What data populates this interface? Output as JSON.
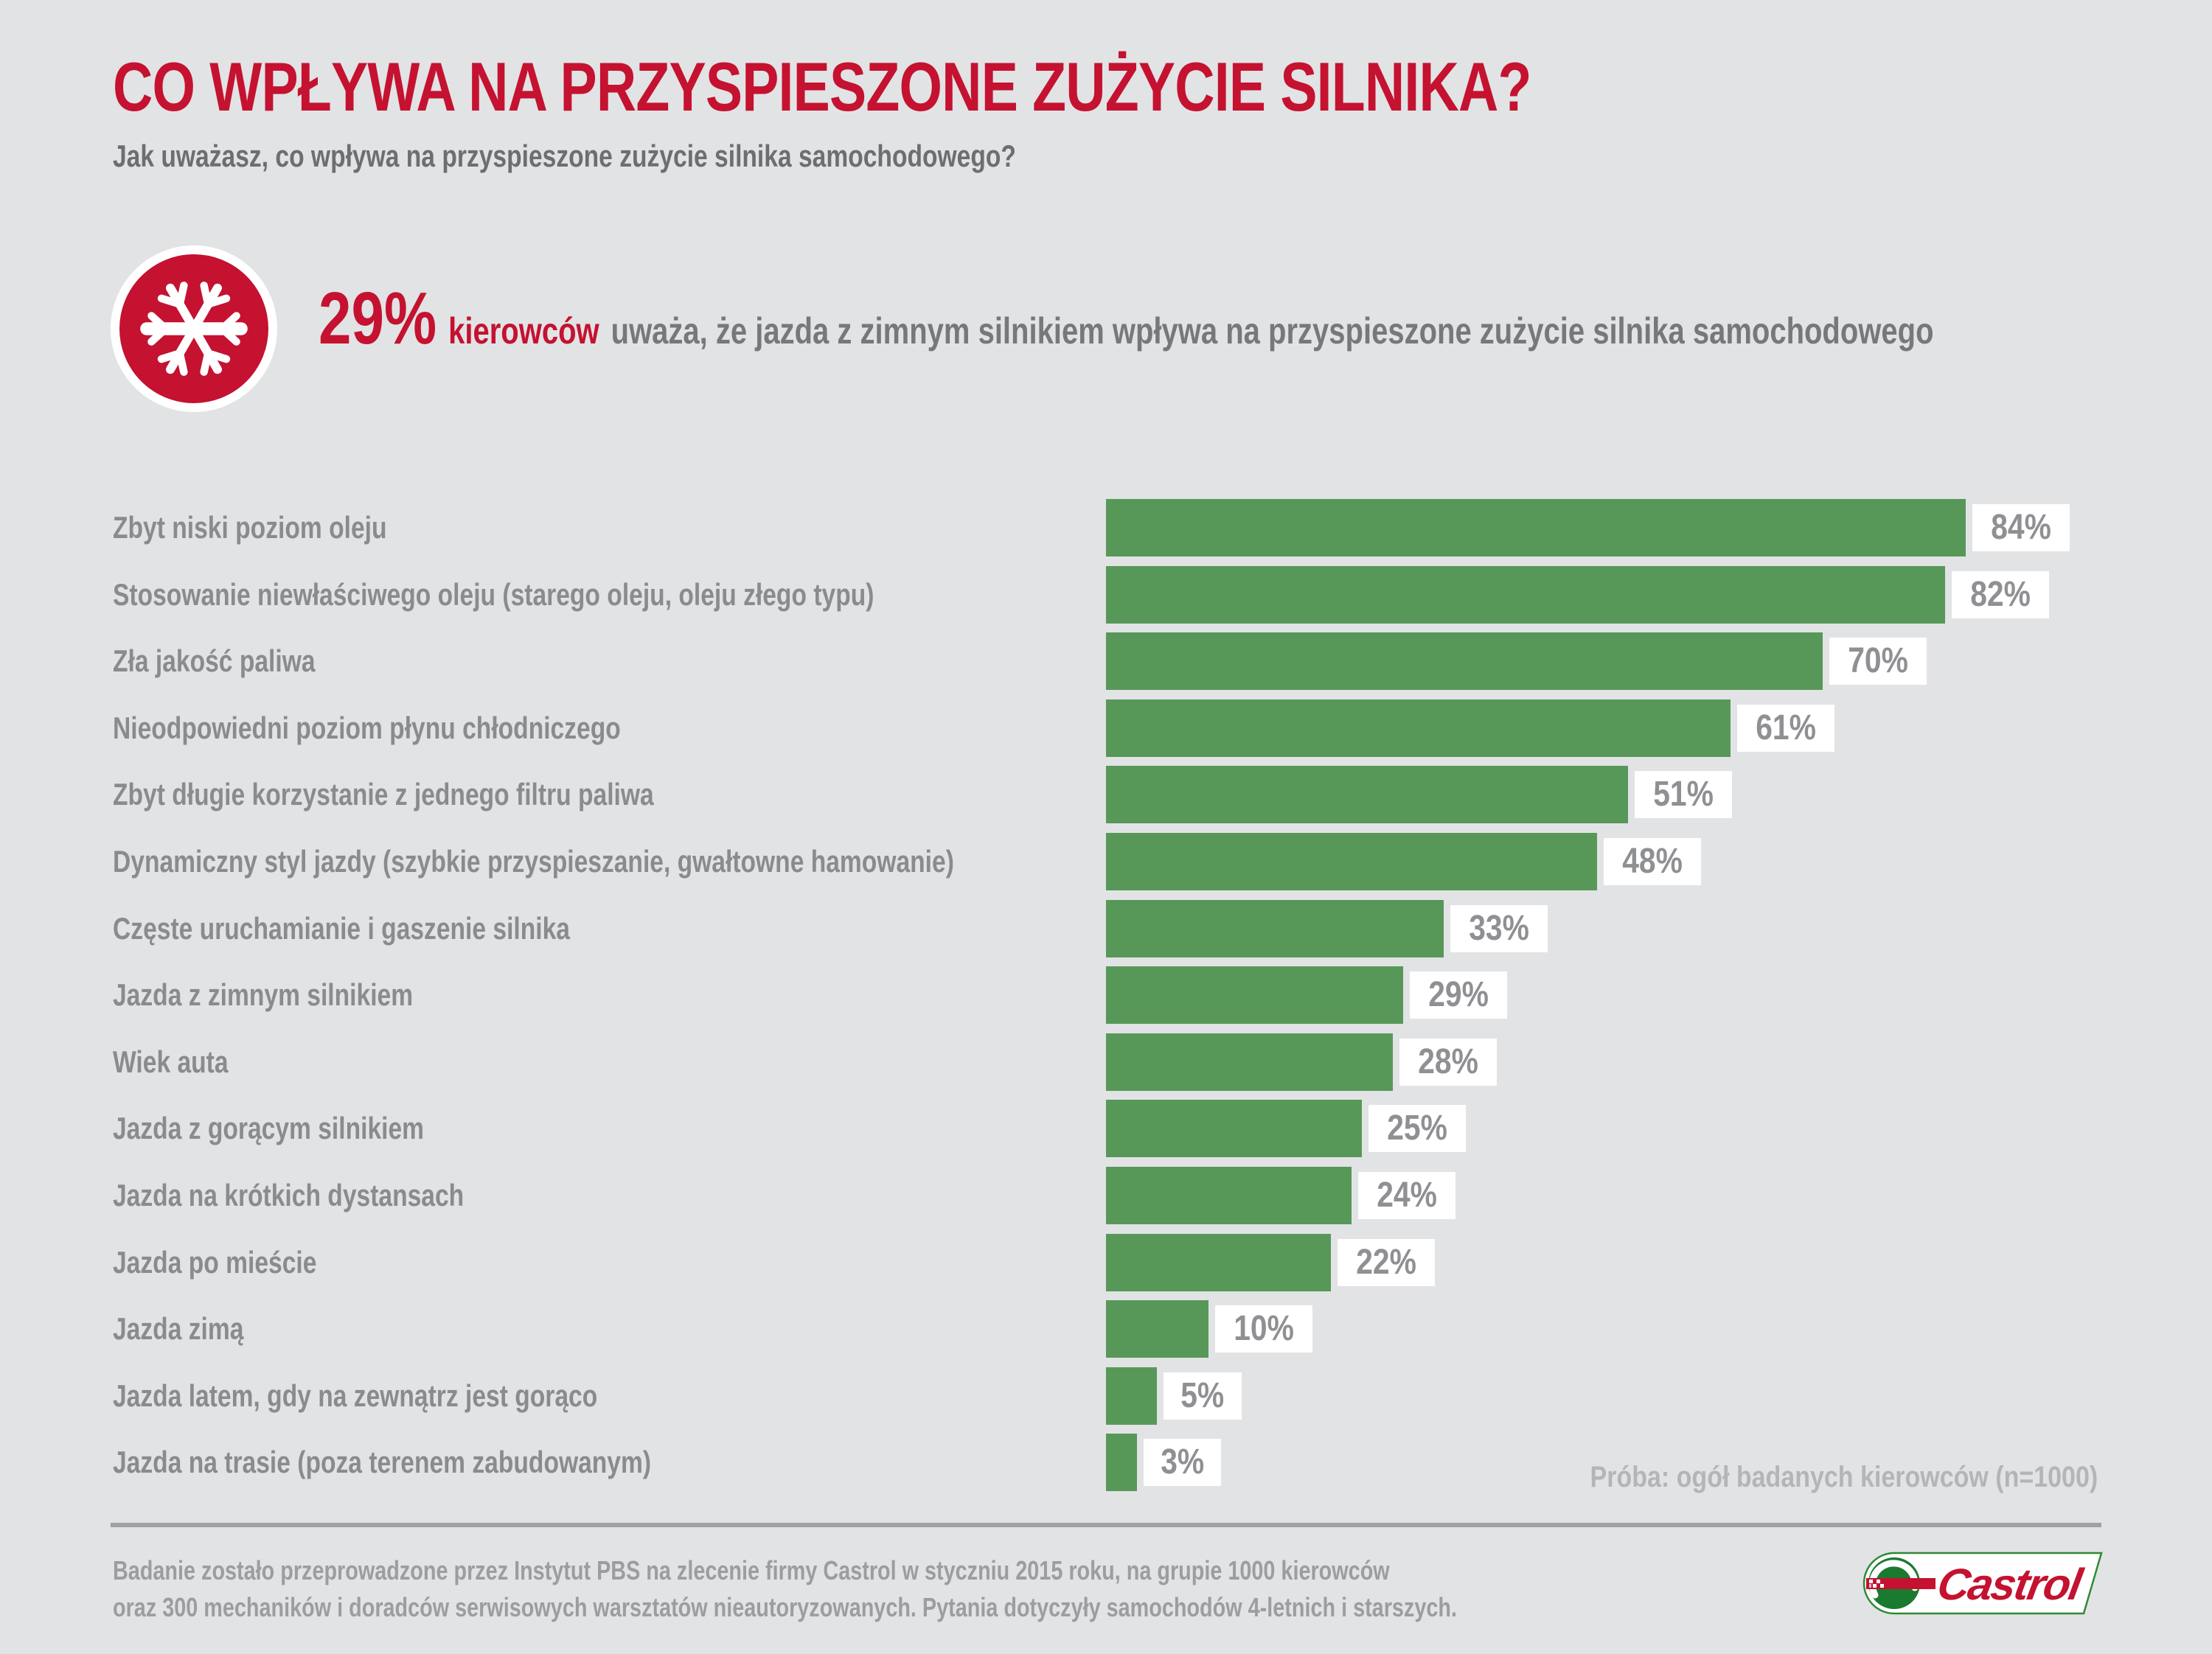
{
  "title": "CO WPŁYWA NA PRZYSPIESZONE ZUŻYCIE SILNIKA?",
  "subtitle": "Jak uważasz, co wpływa na przyspieszone zużycie silnika samochodowego?",
  "highlight": {
    "icon": "snowflake-icon",
    "percent": "29%",
    "who": "kierowców",
    "rest": "uważa, że jazda z zimnym silnikiem wpływa na przyspieszone zużycie silnika samochodowego"
  },
  "chart_data": {
    "type": "bar",
    "orientation": "horizontal",
    "unit": "%",
    "xlim": [
      0,
      100
    ],
    "grid": false,
    "bar_color": "#579859",
    "value_label_style": "white box, gray text, right of bar",
    "categories": [
      "Zbyt niski poziom oleju",
      "Stosowanie niewłaściwego oleju (starego oleju, oleju złego typu)",
      "Zła jakość paliwa",
      "Nieodpowiedni poziom płynu chłodniczego",
      "Zbyt długie korzystanie z jednego filtru paliwa",
      "Dynamiczny styl jazdy (szybkie przyspieszanie, gwałtowne hamowanie)",
      "Częste uruchamianie i gaszenie silnika",
      "Jazda z zimnym silnikiem",
      "Wiek auta",
      "Jazda z gorącym silnikiem",
      "Jazda na krótkich dystansach",
      "Jazda po mieście",
      "Jazda zimą",
      "Jazda latem, gdy na zewnątrz jest gorąco",
      "Jazda na trasie (poza terenem zabudowanym)"
    ],
    "values": [
      84,
      82,
      70,
      61,
      51,
      48,
      33,
      29,
      28,
      25,
      24,
      22,
      10,
      5,
      3
    ]
  },
  "sample_note": "Próba: ogół badanych kierowców (n=1000)",
  "footer": {
    "line1": "Badanie zostało przeprowadzone przez Instytut PBS na zlecenie firmy Castrol w styczniu 2015 roku, na grupie 1000 kierowców",
    "line2": "oraz 300 mechaników i doradców serwisowych warsztatów nieautoryzowanych. Pytania dotyczyły samochodów 4-letnich i starszych."
  },
  "logo": {
    "brand": "Castrol"
  },
  "colors": {
    "background": "#e2e3e5",
    "accent_red": "#c41230",
    "bar_green": "#579859",
    "label_gray": "#8a8b8e",
    "value_gray": "#8f9093",
    "note_gray": "#b4b5b8",
    "footer_gray": "#9c9da0",
    "logo_green": "#1a7a2f"
  }
}
